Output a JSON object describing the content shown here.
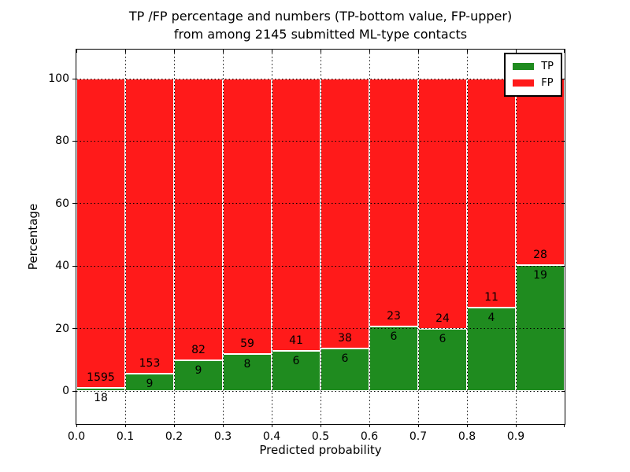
{
  "title": {
    "line1": "TP /FP percentage and numbers (TP-bottom value, FP-upper)",
    "line2": "from among 2145 submitted ML-type contacts"
  },
  "axes": {
    "xlabel": "Predicted probability",
    "ylabel": "Percentage",
    "x_tick_labels": [
      "0.0",
      "0.1",
      "0.2",
      "0.3",
      "0.4",
      "0.5",
      "0.6",
      "0.7",
      "0.8",
      "0.9"
    ],
    "y_tick_values": [
      0,
      20,
      40,
      60,
      80,
      100
    ]
  },
  "legend": {
    "position": "upper-right",
    "entries": [
      {
        "label": "TP",
        "color": "#1f8b1f"
      },
      {
        "label": "FP",
        "color": "#ff1a1a"
      }
    ]
  },
  "colors": {
    "tp_green": "#1f8b1f",
    "fp_red": "#ff1a1a",
    "bar_edge": "#ffffff",
    "grid": "#000000"
  },
  "chart_data": {
    "type": "bar",
    "stacked": true,
    "normalized_to_percent": true,
    "title": "TP /FP percentage and numbers (TP-bottom value, FP-upper) from among 2145 submitted ML-type contacts",
    "xlabel": "Predicted probability",
    "ylabel": "Percentage",
    "total_contacts": 2145,
    "bin_width": 0.1,
    "bin_starts": [
      0.0,
      0.1,
      0.2,
      0.3,
      0.4,
      0.5,
      0.6,
      0.7,
      0.8,
      0.9
    ],
    "series": [
      {
        "name": "TP",
        "color": "#1f8b1f",
        "counts": [
          18,
          9,
          9,
          8,
          6,
          6,
          6,
          6,
          4,
          19
        ]
      },
      {
        "name": "FP",
        "color": "#ff1a1a",
        "counts": [
          1595,
          153,
          82,
          59,
          41,
          38,
          23,
          24,
          11,
          28
        ]
      }
    ],
    "tp_percent_of_bin": [
      1.12,
      5.56,
      9.89,
      11.94,
      12.77,
      13.64,
      20.69,
      20.0,
      26.67,
      40.43
    ],
    "xlim": [
      0.0,
      1.0
    ],
    "ylim": [
      -11,
      110
    ],
    "grid": true,
    "grid_style": "dotted",
    "legend_position": "upper right"
  }
}
